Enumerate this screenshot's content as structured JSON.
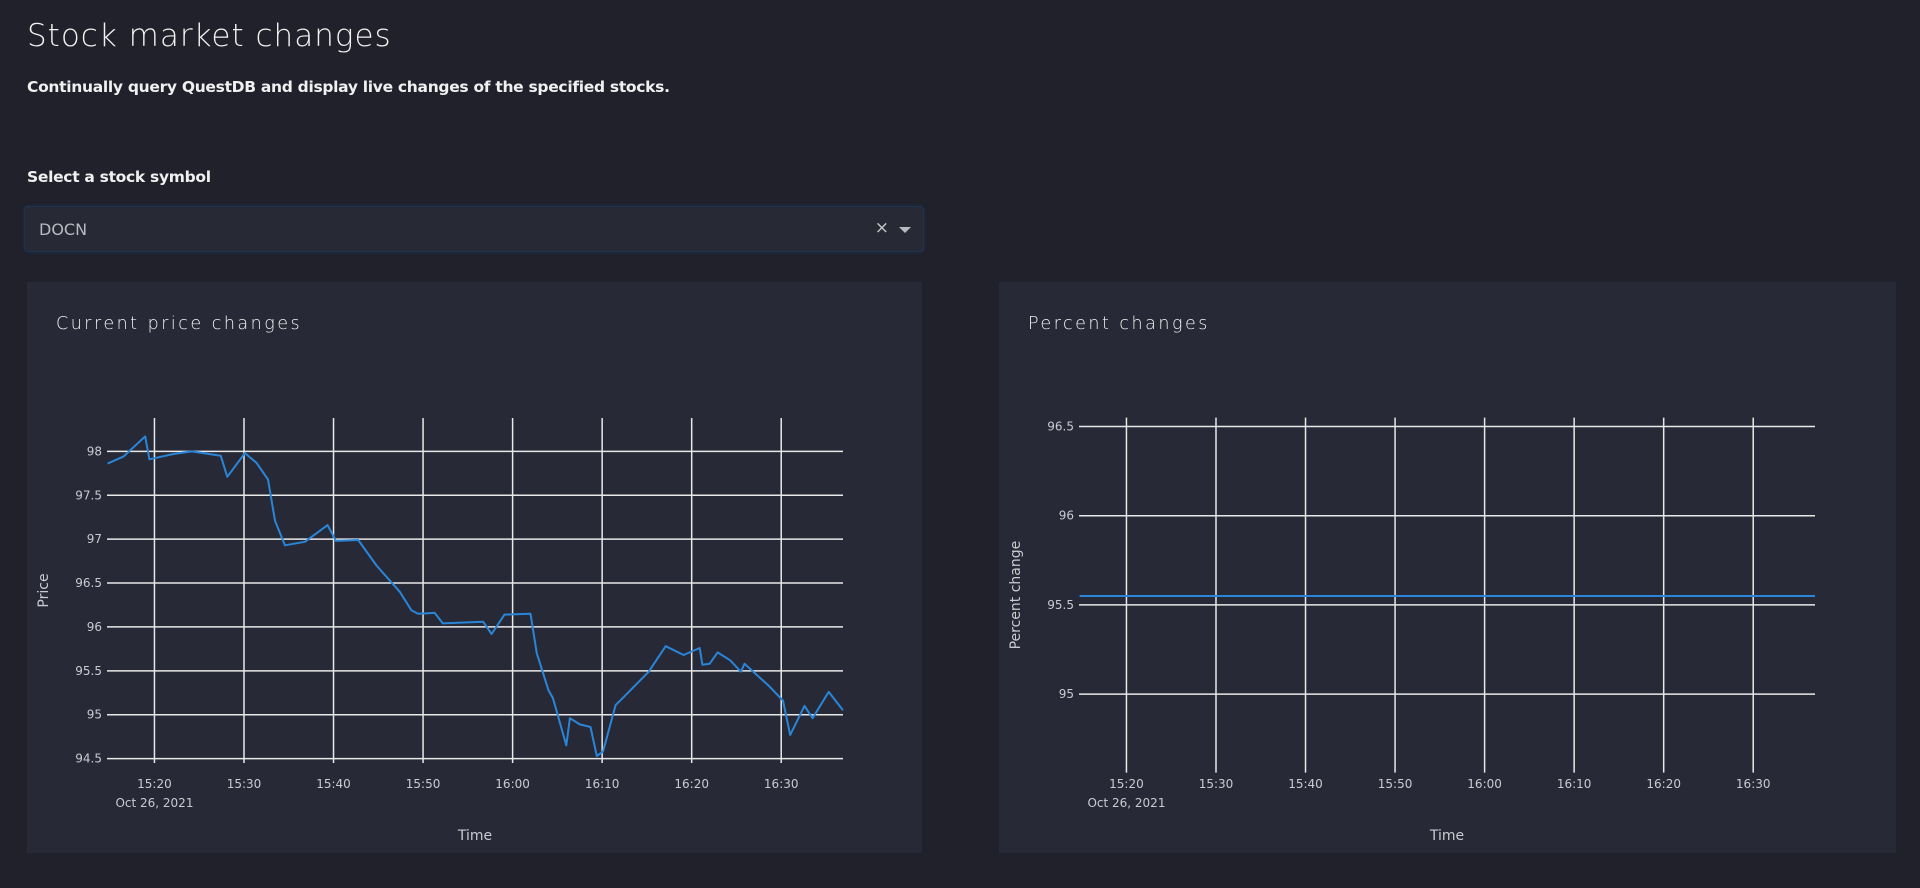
{
  "header": {
    "title": "Stock market changes",
    "subtitle": "Continually query QuestDB and display live changes of the specified stocks."
  },
  "selector": {
    "label": "Select a stock symbol",
    "value": "DOCN",
    "clear_icon": "×"
  },
  "panels": {
    "left_title": "Current price changes",
    "right_title": "Percent changes"
  },
  "colors": {
    "background": "#20212b",
    "panel": "#272a36",
    "line": "#2a85d8",
    "grid": "#e8e8e8"
  },
  "chart_data": [
    {
      "type": "line",
      "title": "Current price changes",
      "xlabel": "Time",
      "ylabel": "Price",
      "date_label": "Oct 26, 2021",
      "grid": true,
      "xlim": [
        "15:14:42",
        "16:36:54"
      ],
      "ylim": [
        94.45,
        98.38
      ],
      "xticks": [
        "15:20",
        "15:30",
        "15:40",
        "15:50",
        "16:00",
        "16:10",
        "16:20",
        "16:30"
      ],
      "yticks": [
        94.5,
        95,
        95.5,
        96,
        96.5,
        97,
        97.5,
        98
      ],
      "ytick_labels": [
        "94.5",
        "95",
        "95.5",
        "96",
        "96.5",
        "97",
        "97.5",
        "98"
      ],
      "x": [
        "15:14:46",
        "15:16:32",
        "15:18:58",
        "15:19:26",
        "15:22:07",
        "15:24:10",
        "15:27:24",
        "15:28:08",
        "15:30:06",
        "15:31:24",
        "15:32:41",
        "15:33:28",
        "15:34:34",
        "15:36:48",
        "15:39:20",
        "15:40:16",
        "15:42:45",
        "15:44:48",
        "15:47:24",
        "15:48:42",
        "15:49:26",
        "15:51:18",
        "15:52:12",
        "15:56:42",
        "15:57:39",
        "15:59:06",
        "16:02:00",
        "16:02:42",
        "16:04:00",
        "16:04:30",
        "16:06:00",
        "16:06:24",
        "16:07:30",
        "16:08:42",
        "16:09:24",
        "16:10:06",
        "16:11:30",
        "16:12:24",
        "16:15:12",
        "16:17:06",
        "16:19:06",
        "16:20:54",
        "16:21:12",
        "16:22:00",
        "16:22:54",
        "16:24:18",
        "16:25:30",
        "16:25:54",
        "16:28:36",
        "16:30:12",
        "16:31:00",
        "16:32:36",
        "16:33:30",
        "16:35:18",
        "16:36:54"
      ],
      "y": [
        97.86,
        97.94,
        98.17,
        97.91,
        97.97,
        98.0,
        97.95,
        97.71,
        97.98,
        97.87,
        97.68,
        97.21,
        96.93,
        96.97,
        97.16,
        96.98,
        96.99,
        96.7,
        96.4,
        96.19,
        96.15,
        96.16,
        96.04,
        96.06,
        95.92,
        96.14,
        96.15,
        95.7,
        95.28,
        95.19,
        94.65,
        94.96,
        94.89,
        94.86,
        94.53,
        94.58,
        95.11,
        95.2,
        95.49,
        95.78,
        95.68,
        95.76,
        95.57,
        95.58,
        95.71,
        95.62,
        95.49,
        95.58,
        95.33,
        95.16,
        94.77,
        95.1,
        94.96,
        95.26,
        95.05
      ]
    },
    {
      "type": "line",
      "title": "Percent changes",
      "xlabel": "Time",
      "ylabel": "Percent change",
      "date_label": "Oct 26, 2021",
      "grid": true,
      "xlim": [
        "15:14:42",
        "16:36:54"
      ],
      "ylim": [
        94.56,
        96.55
      ],
      "xticks": [
        "15:20",
        "15:30",
        "15:40",
        "15:50",
        "16:00",
        "16:10",
        "16:20",
        "16:30"
      ],
      "yticks": [
        95,
        95.5,
        96,
        96.5
      ],
      "ytick_labels": [
        "95",
        "95.5",
        "96",
        "96.5"
      ],
      "x": [
        "15:14:46",
        "16:36:54"
      ],
      "y": [
        95.55,
        95.55
      ]
    }
  ]
}
